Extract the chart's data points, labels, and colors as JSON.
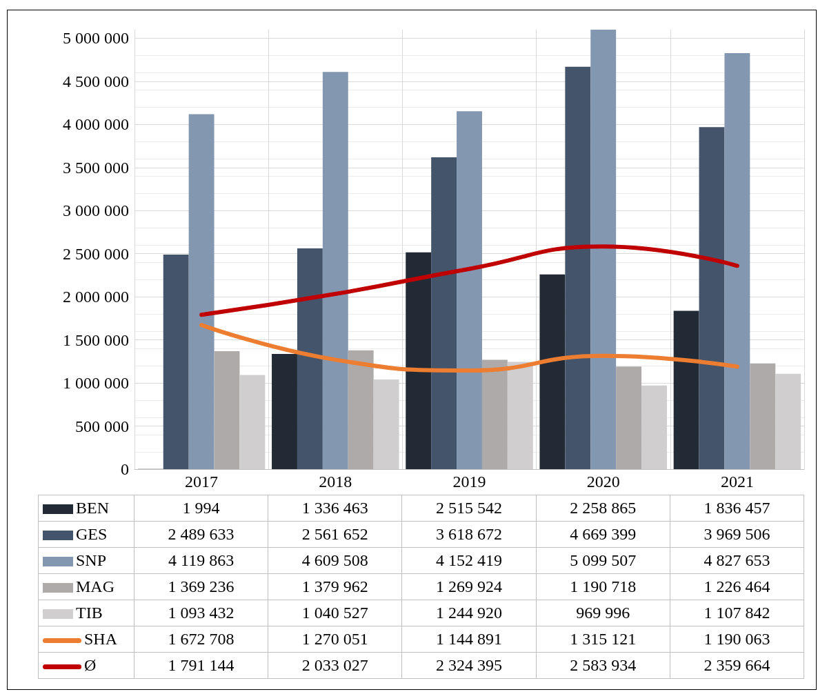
{
  "chart_data": {
    "type": "bar",
    "categories": [
      "2017",
      "2018",
      "2019",
      "2020",
      "2021"
    ],
    "ylim": [
      0,
      5100000
    ],
    "yticks": [
      {
        "value": 0,
        "label": "0"
      },
      {
        "value": 500000,
        "label": "500 000"
      },
      {
        "value": 1000000,
        "label": "1 000 000"
      },
      {
        "value": 1500000,
        "label": "1 500 000"
      },
      {
        "value": 2000000,
        "label": "2 000 000"
      },
      {
        "value": 2500000,
        "label": "2 500 000"
      },
      {
        "value": 3000000,
        "label": "3 000 000"
      },
      {
        "value": 3500000,
        "label": "3 500 000"
      },
      {
        "value": 4000000,
        "label": "4 000 000"
      },
      {
        "value": 4500000,
        "label": "4 500 000"
      },
      {
        "value": 5000000,
        "label": "5 000 000"
      }
    ],
    "grid": true,
    "legend": "bottom",
    "series": [
      {
        "name": "BEN",
        "color": "#222a35",
        "values": [
          1994,
          1336463,
          2515542,
          2258865,
          1836457
        ],
        "value_labels": [
          "1 994",
          "1 336 463",
          "2 515 542",
          "2 258 865",
          "1 836 457"
        ]
      },
      {
        "name": "GES",
        "color": "#44546a",
        "values": [
          2489633,
          2561652,
          3618672,
          4669399,
          3969506
        ],
        "value_labels": [
          "2 489 633",
          "2 561 652",
          "3 618 672",
          "4 669 399",
          "3 969 506"
        ]
      },
      {
        "name": "SNP",
        "color": "#8497b0",
        "values": [
          4119863,
          4609508,
          4152419,
          5099507,
          4827653
        ],
        "value_labels": [
          "4 119 863",
          "4 609 508",
          "4 152 419",
          "5 099 507",
          "4 827 653"
        ]
      },
      {
        "name": "MAG",
        "color": "#aeaaaa",
        "values": [
          1369236,
          1379962,
          1269924,
          1190718,
          1226464
        ],
        "value_labels": [
          "1 369 236",
          "1 379 962",
          "1 269 924",
          "1 190 718",
          "1 226 464"
        ]
      },
      {
        "name": "TIB",
        "color": "#d0cece",
        "values": [
          1093432,
          1040527,
          1244920,
          969996,
          1107842
        ],
        "value_labels": [
          "1 093 432",
          "1 040 527",
          "1 244 920",
          "969 996",
          "1 107 842"
        ]
      },
      {
        "name": "SHA",
        "type": "line",
        "color": "#ed7d31",
        "marker": "none",
        "line_style": "solid",
        "values": [
          1672708,
          1270051,
          1144891,
          1315121,
          1190063
        ],
        "value_labels": [
          "1 672 708",
          "1 270 051",
          "1 144 891",
          "1 315 121",
          "1 190 063"
        ]
      },
      {
        "name": "Ø",
        "type": "line",
        "color": "#c00000",
        "marker": "none",
        "line_style": "solid",
        "values": [
          1791144,
          2033027,
          2324395,
          2583934,
          2359664
        ],
        "value_labels": [
          "1 791 144",
          "2 033 027",
          "2 324 395",
          "2 583 934",
          "2 359 664"
        ]
      }
    ]
  }
}
